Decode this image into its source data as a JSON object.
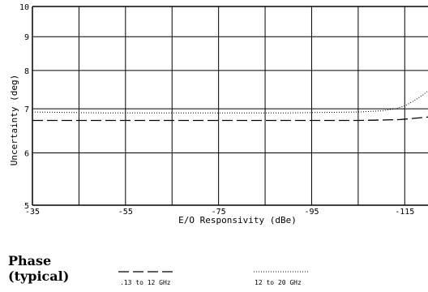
{
  "chart_data": {
    "type": "line",
    "title": "",
    "xlabel": "E/O Responsivity (dBe)",
    "ylabel": "Uncertainty (deg)",
    "xlim": [
      -35,
      -120
    ],
    "ylim": [
      5,
      10
    ],
    "yscale": "log",
    "xticks": [
      -35,
      -55,
      -75,
      -95,
      -115
    ],
    "xtick_labels": [
      "-35",
      "-55",
      "-75",
      "-95",
      "-115"
    ],
    "yticks": [
      5,
      6,
      7,
      8,
      9,
      10
    ],
    "ytick_labels": [
      "5",
      "6",
      "7",
      "8",
      "9",
      "10"
    ],
    "grid": true,
    "series": [
      {
        "name": ".13 to 12 GHz",
        "line_style": "dashed",
        "x": [
          -35,
          -50,
          -70,
          -90,
          -105,
          -110,
          -114,
          -117,
          -120
        ],
        "y": [
          6.72,
          6.72,
          6.72,
          6.72,
          6.72,
          6.73,
          6.74,
          6.77,
          6.8
        ]
      },
      {
        "name": "12 to 20 GHz",
        "line_style": "dotted",
        "x": [
          -35,
          -50,
          -70,
          -90,
          -105,
          -110,
          -113,
          -115,
          -117,
          -119,
          -120
        ],
        "y": [
          6.92,
          6.9,
          6.9,
          6.9,
          6.92,
          6.95,
          7.0,
          7.07,
          7.2,
          7.35,
          7.45
        ]
      }
    ]
  },
  "caption": {
    "line1": "Phase",
    "line2": "(typical)"
  }
}
